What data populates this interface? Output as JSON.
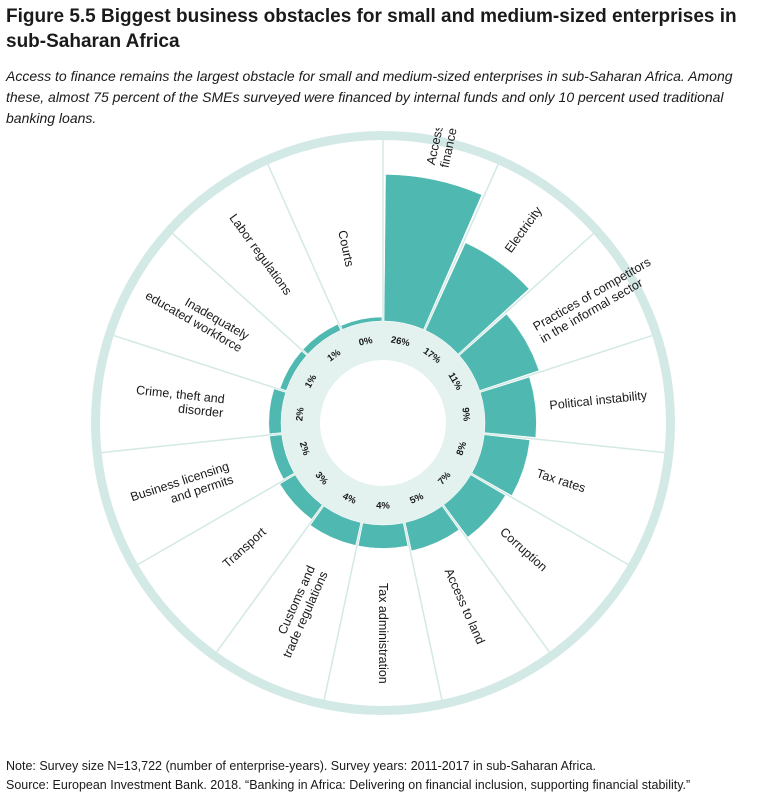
{
  "header": {
    "title": "Figure 5.5 Biggest business obstacles for small and medium-sized enterprises in sub-Saharan Africa",
    "subtitle": "Access to finance remains the largest obstacle for small and medium-sized enterprises in sub-Saharan Africa. Among these, almost 75 percent of the SMEs surveyed were financed by internal funds and only 10 percent used traditional banking loans."
  },
  "footer": {
    "note": "Note: Survey size N=13,722 (number of enterprise-years). Survey years: 2011-2017 in sub-Saharan Africa.",
    "source": "Source: European Investment Bank. 2018. “Banking in Africa: Delivering on financial inclusion, supporting financial stability.”"
  },
  "colors": {
    "bar": "#4fb8b0",
    "bar_stroke": "#ffffff",
    "inner_ring": "#e3f1ef",
    "outer_ring": "#d3e9e6",
    "outer_bg": "#ffffff",
    "grid": "#d3e9e6",
    "text": "#1a1a1a"
  },
  "chart_data": {
    "type": "bar",
    "layout": "radial",
    "categories": [
      "Access to finance",
      "Electricity",
      "Practices of competitors in the informal sector",
      "Political instability",
      "Tax rates",
      "Corruption",
      "Access to land",
      "Tax administration",
      "Customs and trade regulations",
      "Transport",
      "Business licensing and permits",
      "Crime, theft and disorder",
      "Inadequately educated workforce",
      "Labor regulations",
      "Courts"
    ],
    "category_labels": [
      [
        "Access to",
        "finance"
      ],
      [
        "Electricity"
      ],
      [
        "Practices of competitors",
        "in the informal sector"
      ],
      [
        "Political instability"
      ],
      [
        "Tax rates"
      ],
      [
        "Corruption"
      ],
      [
        "Access to land"
      ],
      [
        "Tax administration"
      ],
      [
        "Customs and",
        "trade regulations"
      ],
      [
        "Transport"
      ],
      [
        "Business licensing",
        "and permits"
      ],
      [
        "Crime, theft and",
        "disorder"
      ],
      [
        "Inadequately",
        "educated workforce"
      ],
      [
        "Labor regulations"
      ],
      [
        "Courts"
      ]
    ],
    "values": [
      26,
      17,
      11,
      9,
      8,
      7,
      5,
      4,
      4,
      3,
      2,
      2,
      1,
      1,
      0
    ],
    "value_labels": [
      "26%",
      "17%",
      "11%",
      "9%",
      "8%",
      "7%",
      "5%",
      "4%",
      "4%",
      "3%",
      "2%",
      "2%",
      "1%",
      "1%",
      "0%"
    ],
    "unit": "%",
    "grid": true,
    "legend": "none"
  }
}
